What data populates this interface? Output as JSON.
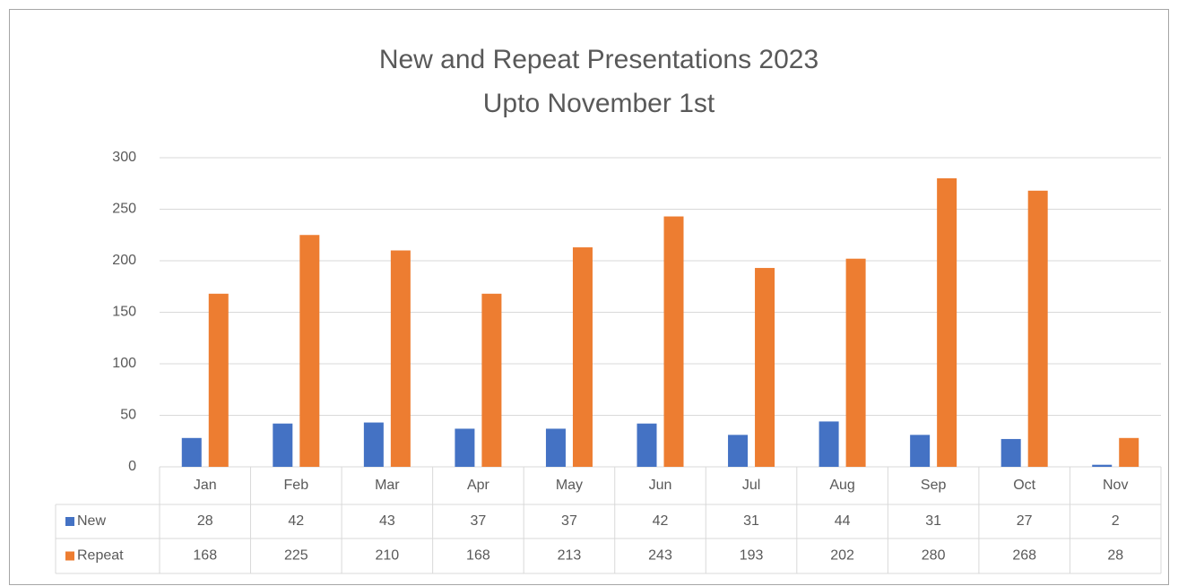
{
  "chart_data": {
    "type": "bar",
    "title": "New and Repeat Presentations 2023",
    "subtitle": "Upto November 1st",
    "categories": [
      "Jan",
      "Feb",
      "Mar",
      "Apr",
      "May",
      "Jun",
      "Jul",
      "Aug",
      "Sep",
      "Oct",
      "Nov"
    ],
    "series": [
      {
        "name": "New",
        "color": "#4472c4",
        "values": [
          28,
          42,
          43,
          37,
          37,
          42,
          31,
          44,
          31,
          27,
          2
        ]
      },
      {
        "name": "Repeat",
        "color": "#ed7d31",
        "values": [
          168,
          225,
          210,
          168,
          213,
          243,
          193,
          202,
          280,
          268,
          28
        ]
      }
    ],
    "ylim": [
      0,
      300
    ],
    "yticks": [
      0,
      50,
      100,
      150,
      200,
      250,
      300
    ],
    "grid": true
  }
}
